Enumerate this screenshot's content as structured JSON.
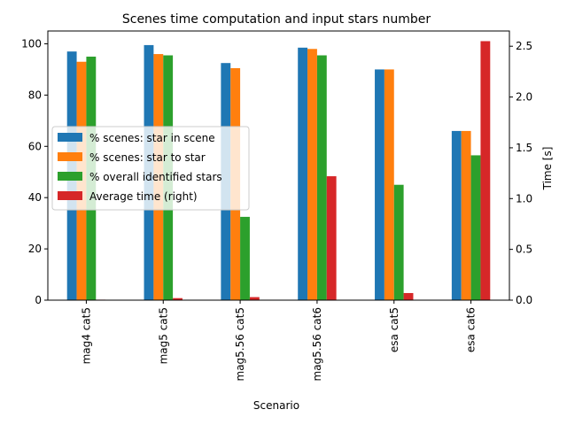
{
  "chart_data": {
    "type": "bar",
    "title": "Scenes time computation and input stars number",
    "xlabel": "Scenario",
    "ylabel": "",
    "ylabel_right": "Time [s]",
    "categories": [
      "mag4 cat5",
      "mag5 cat5",
      "mag5.56 cat5",
      "mag5.56 cat6",
      "esa cat5",
      "esa cat6"
    ],
    "ylim": [
      0,
      105
    ],
    "ylim_right": [
      0,
      2.65
    ],
    "yticks": [
      0,
      20,
      40,
      60,
      80,
      100
    ],
    "yticks_right": [
      0.0,
      0.5,
      1.0,
      1.5,
      2.0,
      2.5
    ],
    "ytick_labels_right": [
      "0.0",
      "0.5",
      "1.0",
      "1.5",
      "2.0",
      "2.5"
    ],
    "series": [
      {
        "name": "% scenes: star in scene",
        "axis": "left",
        "color": "#1f77b4",
        "values": [
          97.0,
          99.5,
          92.5,
          98.5,
          90.0,
          66.0
        ]
      },
      {
        "name": "% scenes: star to star",
        "axis": "left",
        "color": "#ff7f0e",
        "values": [
          93.0,
          96.0,
          90.5,
          98.0,
          90.0,
          66.0
        ]
      },
      {
        "name": "% overall identified stars",
        "axis": "left",
        "color": "#2ca02c",
        "values": [
          95.0,
          95.5,
          32.5,
          95.5,
          45.0,
          56.5
        ]
      },
      {
        "name": "Average time (right)",
        "axis": "right",
        "color": "#d62728",
        "values": [
          0.005,
          0.02,
          0.03,
          1.22,
          0.07,
          2.55
        ]
      }
    ],
    "legend": "center-left",
    "grid": false
  }
}
